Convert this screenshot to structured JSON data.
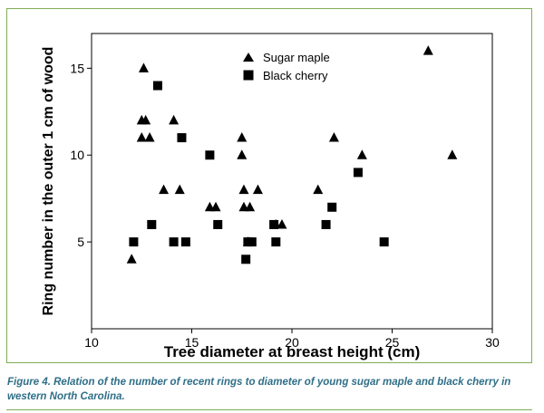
{
  "chart_data": {
    "type": "scatter",
    "title": "",
    "xlabel": "Tree diameter at breast height (cm)",
    "ylabel": "Ring number in the outer 1 cm of wood",
    "xlim": [
      10,
      30
    ],
    "ylim": [
      0,
      17
    ],
    "xticks": [
      10,
      15,
      20,
      25,
      30
    ],
    "yticks": [
      5,
      10,
      15
    ],
    "grid": false,
    "legend_position": "top-center",
    "series": [
      {
        "name": "Sugar maple",
        "marker": "triangle",
        "color": "#000000",
        "points": [
          [
            12.0,
            4
          ],
          [
            12.6,
            15
          ],
          [
            12.5,
            12
          ],
          [
            12.7,
            12
          ],
          [
            12.5,
            11
          ],
          [
            12.9,
            11
          ],
          [
            13.6,
            8
          ],
          [
            14.1,
            12
          ],
          [
            14.4,
            8
          ],
          [
            15.9,
            7
          ],
          [
            16.2,
            7
          ],
          [
            17.5,
            11
          ],
          [
            17.5,
            10
          ],
          [
            17.6,
            8
          ],
          [
            17.6,
            7
          ],
          [
            17.8,
            5
          ],
          [
            17.9,
            7
          ],
          [
            18.3,
            8
          ],
          [
            19.2,
            6
          ],
          [
            19.5,
            6
          ],
          [
            21.3,
            8
          ],
          [
            22.1,
            11
          ],
          [
            23.5,
            10
          ],
          [
            26.8,
            16
          ],
          [
            28.0,
            10
          ]
        ]
      },
      {
        "name": "Black cherry",
        "marker": "square",
        "color": "#000000",
        "points": [
          [
            12.1,
            5
          ],
          [
            13.0,
            6
          ],
          [
            13.3,
            14
          ],
          [
            14.1,
            5
          ],
          [
            14.5,
            11
          ],
          [
            14.7,
            5
          ],
          [
            15.9,
            10
          ],
          [
            16.3,
            6
          ],
          [
            17.7,
            4
          ],
          [
            17.8,
            5
          ],
          [
            18.0,
            5
          ],
          [
            19.1,
            6
          ],
          [
            19.2,
            5
          ],
          [
            21.7,
            6
          ],
          [
            22.0,
            7
          ],
          [
            23.3,
            9
          ],
          [
            24.6,
            5
          ]
        ]
      }
    ]
  },
  "caption": "Figure 4. Relation of the number of recent rings to diameter of young sugar maple and black cherry in western North Carolina.",
  "colors": {
    "frame_border": "#7fae56",
    "caption_text": "#2f6f88",
    "marker": "#000000"
  }
}
